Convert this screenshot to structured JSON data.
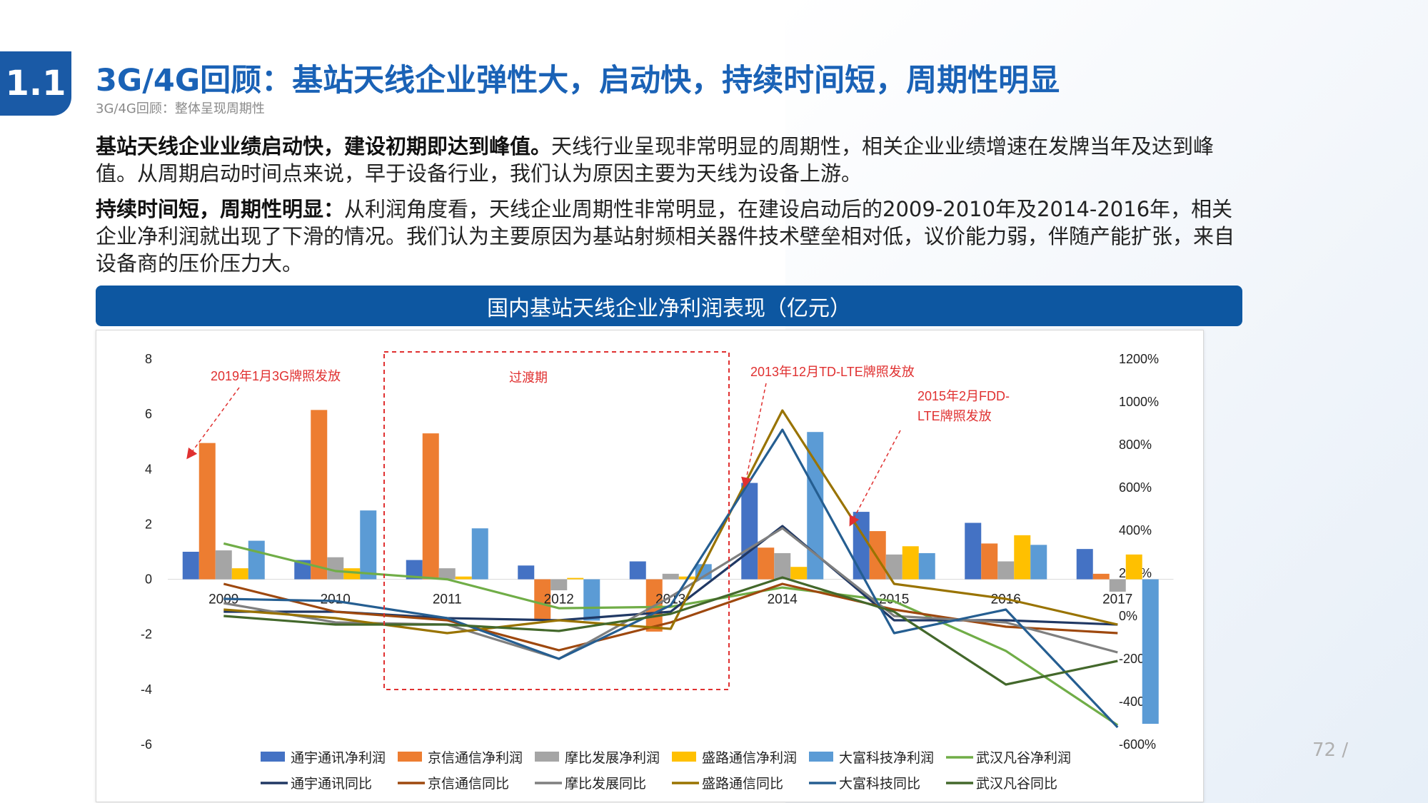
{
  "header": {
    "badge": "1.1",
    "title": "3G/4G回顾：基站天线企业弹性大，启动快，持续时间短，周期性明显",
    "subtitle": "3G/4G回顾：整体呈现周期性"
  },
  "body": {
    "p1_bold": "基站天线企业业绩启动快，建设初期即达到峰值。",
    "p1_text": "天线行业呈现非常明显的周期性，相关企业业绩增速在发牌当年及达到峰值。从周期启动时间点来说，早于设备行业，我们认为原因主要为天线为设备上游。",
    "p2_bold": "持续时间短，周期性明显：",
    "p2_text": "从利润角度看，天线企业周期性非常明显，在建设启动后的2009-2010年及2014-2016年，相关企业净利润就出现了下滑的情况。我们认为主要原因为基站射频相关器件技术壁垒相对低，议价能力弱，伴随产能扩张，来自设备商的压价压力大。"
  },
  "chart_header": "国内基站天线企业净利润表现（亿元）",
  "page_number": "72",
  "page_sep": "/",
  "colors": {
    "title_blue": "#1a62b6",
    "header_bg": "#0d57a1",
    "annotation_red": "#e03030"
  },
  "chart_data": {
    "type": "bar",
    "categories": [
      "2009",
      "2010",
      "2011",
      "2012",
      "2013",
      "2014",
      "2015",
      "2016",
      "2017"
    ],
    "y_left": {
      "min": -6,
      "max": 8,
      "ticks": [
        "-6",
        "-4",
        "-2",
        "0",
        "2",
        "4",
        "6",
        "8"
      ]
    },
    "y_right": {
      "min": -600,
      "max": 1200,
      "ticks": [
        "-600%",
        "-400%",
        "-200%",
        "0%",
        "200%",
        "400%",
        "600%",
        "800%",
        "1000%",
        "1200%"
      ]
    },
    "bar_series": [
      {
        "name": "通宇通讯净利润",
        "color": "#4472c4",
        "values": [
          1.0,
          0.7,
          0.7,
          0.5,
          0.65,
          3.5,
          2.45,
          2.05,
          1.1
        ]
      },
      {
        "name": "京信通信净利润",
        "color": "#ed7d31",
        "values": [
          4.95,
          6.15,
          5.3,
          -1.5,
          -1.9,
          1.15,
          1.75,
          1.3,
          0.2
        ]
      },
      {
        "name": "摩比发展净利润",
        "color": "#a5a5a5",
        "values": [
          1.05,
          0.8,
          0.4,
          -0.4,
          0.2,
          0.95,
          0.9,
          0.65,
          -0.45
        ]
      },
      {
        "name": "盛路通信净利润",
        "color": "#ffc000",
        "values": [
          0.4,
          0.4,
          0.1,
          0.05,
          0.1,
          0.45,
          1.2,
          1.6,
          0.9
        ]
      },
      {
        "name": "大富科技净利润",
        "color": "#5b9bd5",
        "values": [
          1.4,
          2.5,
          1.85,
          -1.5,
          0.55,
          5.35,
          0.95,
          1.25,
          -5.25
        ]
      }
    ],
    "line_series": [
      {
        "name": "武汉凡谷净利润",
        "axis": "left",
        "color": "#70ad47",
        "values": [
          1.3,
          0.3,
          0.0,
          -1.05,
          -1.0,
          -0.3,
          -0.8,
          -2.6,
          -5.3
        ]
      },
      {
        "name": "通宇通讯同比",
        "axis": "right",
        "color": "#203864",
        "values": [
          20,
          20,
          -10,
          -20,
          20,
          420,
          -20,
          -20,
          -40
        ]
      },
      {
        "name": "京信通信同比",
        "axis": "right",
        "color": "#9e480e",
        "values": [
          150,
          20,
          -20,
          -160,
          -30,
          150,
          30,
          -50,
          -80
        ]
      },
      {
        "name": "摩比发展同比",
        "axis": "right",
        "color": "#7f7f7f",
        "values": [
          60,
          -30,
          -40,
          -200,
          90,
          410,
          0,
          -30,
          -170
        ]
      },
      {
        "name": "盛路通信同比",
        "axis": "right",
        "color": "#997300",
        "values": [
          30,
          -10,
          -80,
          -20,
          -60,
          960,
          150,
          80,
          -40
        ]
      },
      {
        "name": "大富科技同比",
        "axis": "right",
        "color": "#255e91",
        "values": [
          80,
          70,
          -10,
          -200,
          50,
          870,
          -80,
          30,
          -520
        ]
      },
      {
        "name": "武汉凡谷同比",
        "axis": "right",
        "color": "#43682b",
        "values": [
          0,
          -40,
          -40,
          -70,
          10,
          180,
          20,
          -320,
          -210
        ]
      }
    ],
    "annotations": [
      {
        "text": "2019年1月3G牌照发放"
      },
      {
        "text": "过渡期"
      },
      {
        "text": "2013年12月TD-LTE牌照发放"
      },
      {
        "text": "2015年2月FDD-"
      },
      {
        "text": "LTE牌照发放"
      }
    ],
    "legend_position": "bottom"
  }
}
